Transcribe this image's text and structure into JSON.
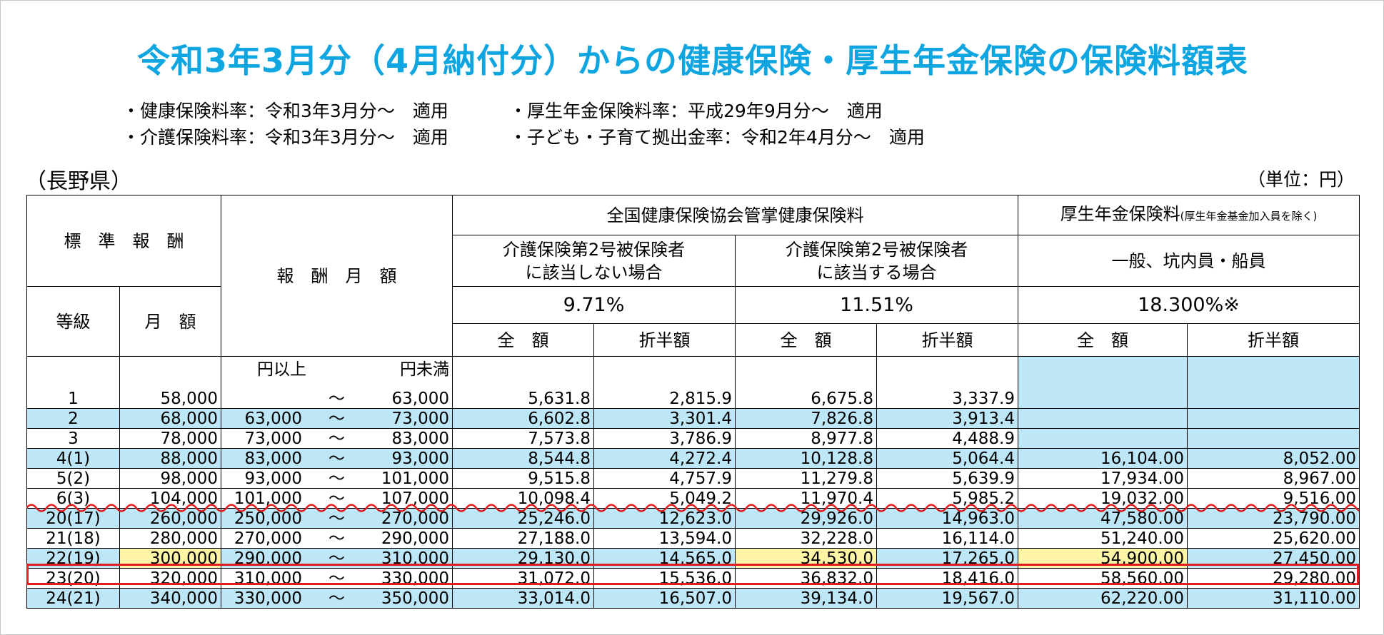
{
  "title": "令和3年3月分（4月納付分）からの健康保険・厚生年金保険の保険料額表",
  "rates": {
    "left": [
      "・健康保険料率：令和3年3月分～　適用",
      "・介護保険料率：令和3年3月分～　適用"
    ],
    "right": [
      "・厚生年金保険料率：平成29年9月分～　適用",
      "・子ども・子育て拠出金率：令和2年4月分～　適用"
    ]
  },
  "prefecture": "（長野県）",
  "unit": "（単位：円）",
  "headers": {
    "standard_remuneration": "標　準　報　酬",
    "grade": "等級",
    "monthly_amount": "月　額",
    "remuneration_monthly": "報　酬　月　額",
    "health_insurance": "全国健康保険協会管掌健康保険料",
    "not_care": "介護保険第2号被保険者\nに該当しない場合",
    "care": "介護保険第2号被保険者\nに該当する場合",
    "pension": "厚生年金保険料",
    "pension_note": "(厚生年金基金加入員を除く)",
    "pension_sub": "一般、坑内員・船員",
    "rate_not_care": "9.71%",
    "rate_care": "11.51%",
    "rate_pension": "18.300%※",
    "full": "全　額",
    "half": "折半額",
    "yen_from": "円以上",
    "yen_to": "円未満"
  },
  "rows": [
    {
      "grade": "1",
      "monthly": "58,000",
      "from": "",
      "sep": "～",
      "to": "63,000",
      "nc_full": "5,631.8",
      "nc_half": "2,815.9",
      "c_full": "6,675.8",
      "c_half": "3,337.9",
      "p_full": "",
      "p_half": ""
    },
    {
      "grade": "2",
      "monthly": "68,000",
      "from": "63,000",
      "sep": "～",
      "to": "73,000",
      "nc_full": "6,602.8",
      "nc_half": "3,301.4",
      "c_full": "7,826.8",
      "c_half": "3,913.4",
      "p_full": "",
      "p_half": ""
    },
    {
      "grade": "3",
      "monthly": "78,000",
      "from": "73,000",
      "sep": "～",
      "to": "83,000",
      "nc_full": "7,573.8",
      "nc_half": "3,786.9",
      "c_full": "8,977.8",
      "c_half": "4,488.9",
      "p_full": "",
      "p_half": ""
    },
    {
      "grade": "4(1)",
      "monthly": "88,000",
      "from": "83,000",
      "sep": "～",
      "to": "93,000",
      "nc_full": "8,544.8",
      "nc_half": "4,272.4",
      "c_full": "10,128.8",
      "c_half": "5,064.4",
      "p_full": "16,104.00",
      "p_half": "8,052.00"
    },
    {
      "grade": "5(2)",
      "monthly": "98,000",
      "from": "93,000",
      "sep": "～",
      "to": "101,000",
      "nc_full": "9,515.8",
      "nc_half": "4,757.9",
      "c_full": "11,279.8",
      "c_half": "5,639.9",
      "p_full": "17,934.00",
      "p_half": "8,967.00"
    },
    {
      "grade": "6(3)",
      "monthly": "104,000",
      "from": "101,000",
      "sep": "～",
      "to": "107,000",
      "nc_full": "10,098.4",
      "nc_half": "5,049.2",
      "c_full": "11,970.4",
      "c_half": "5,985.2",
      "p_full": "19,032.00",
      "p_half": "9,516.00"
    },
    {
      "grade": "20(17)",
      "monthly": "260,000",
      "from": "250,000",
      "sep": "～",
      "to": "270,000",
      "nc_full": "25,246.0",
      "nc_half": "12,623.0",
      "c_full": "29,926.0",
      "c_half": "14,963.0",
      "p_full": "47,580.00",
      "p_half": "23,790.00"
    },
    {
      "grade": "21(18)",
      "monthly": "280,000",
      "from": "270,000",
      "sep": "～",
      "to": "290,000",
      "nc_full": "27,188.0",
      "nc_half": "13,594.0",
      "c_full": "32,228.0",
      "c_half": "16,114.0",
      "p_full": "51,240.00",
      "p_half": "25,620.00"
    },
    {
      "grade": "22(19)",
      "monthly": "300,000",
      "from": "290,000",
      "sep": "～",
      "to": "310,000",
      "nc_full": "29,130.0",
      "nc_half": "14,565.0",
      "c_full": "34,530.0",
      "c_half": "17,265.0",
      "p_full": "54,900.00",
      "p_half": "27,450.00"
    },
    {
      "grade": "23(20)",
      "monthly": "320,000",
      "from": "310,000",
      "sep": "～",
      "to": "330,000",
      "nc_full": "31,072.0",
      "nc_half": "15,536.0",
      "c_full": "36,832.0",
      "c_half": "18,416.0",
      "p_full": "58,560.00",
      "p_half": "29,280.00"
    },
    {
      "grade": "24(21)",
      "monthly": "340,000",
      "from": "330,000",
      "sep": "～",
      "to": "350,000",
      "nc_full": "33,014.0",
      "nc_half": "16,507.0",
      "c_full": "39,134.0",
      "c_half": "19,567.0",
      "p_full": "62,220.00",
      "p_half": "31,110.00"
    }
  ],
  "colors": {
    "title": "#0ea5e0",
    "row_blue": "#bde6f7",
    "highlight_yellow": "#fff5a6",
    "highlight_box": "#e01c1c"
  }
}
